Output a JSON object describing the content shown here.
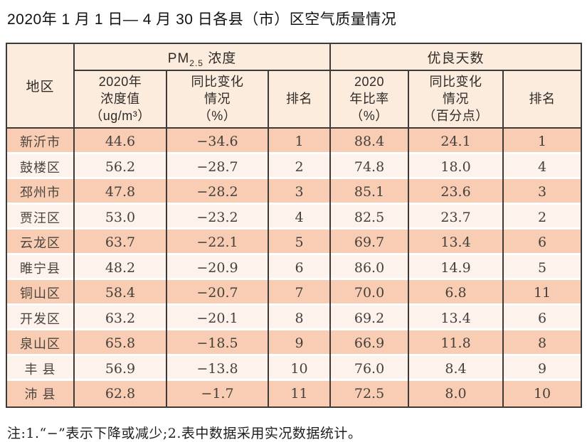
{
  "title": "2020年 1 月 1 日— 4 月 30 日各县（市）区空气质量情况",
  "note": "注:1.“−”表示下降或减少;2.表中数据采用实况数据统计。",
  "table": {
    "region_header": "地区",
    "pm_group": {
      "prefix": "PM",
      "sub": "2.5",
      "suffix": " 浓度"
    },
    "good_days_group": "优良天数",
    "sub_headers": [
      "2020年\n浓度值\n（ug/m³）",
      "同比变化\n情况\n（%）",
      "排名",
      "2020\n年比率\n（%）",
      "同比变化\n情况\n（百分点）",
      "排名"
    ]
  },
  "chart_data": {
    "type": "table",
    "title": "2020年1月1日—4月30日各县（市）区空气质量情况",
    "column_groups": [
      "PM2.5浓度",
      "优良天数"
    ],
    "columns": [
      "地区",
      "2020年浓度值（ug/m³）",
      "PM2.5同比变化情况（%）",
      "PM2.5排名",
      "优良天数2020年比率（%）",
      "优良天数同比变化情况（百分点）",
      "优良天数排名"
    ],
    "rows": [
      [
        "新沂市",
        "44.6",
        "−34.6",
        "1",
        "88.4",
        "24.1",
        "1"
      ],
      [
        "鼓楼区",
        "56.2",
        "−28.7",
        "2",
        "74.8",
        "18.0",
        "4"
      ],
      [
        "邳州市",
        "47.8",
        "−28.2",
        "3",
        "85.1",
        "23.6",
        "3"
      ],
      [
        "贾汪区",
        "53.0",
        "−23.2",
        "4",
        "82.5",
        "23.7",
        "2"
      ],
      [
        "云龙区",
        "63.7",
        "−22.1",
        "5",
        "69.7",
        "13.4",
        "6"
      ],
      [
        "睢宁县",
        "48.2",
        "−20.9",
        "6",
        "86.0",
        "14.9",
        "5"
      ],
      [
        "铜山区",
        "58.4",
        "−20.7",
        "7",
        "70.0",
        "6.8",
        "11"
      ],
      [
        "开发区",
        "63.2",
        "−20.1",
        "8",
        "69.2",
        "13.4",
        "6"
      ],
      [
        "泉山区",
        "65.8",
        "−18.5",
        "9",
        "66.9",
        "11.8",
        "8"
      ],
      [
        "丰 县",
        "56.9",
        "−13.8",
        "10",
        "76.0",
        "8.4",
        "9"
      ],
      [
        "沛 县",
        "62.8",
        "−1.7",
        "11",
        "72.5",
        "8.0",
        "10"
      ]
    ],
    "notes": "注:1.“−”表示下降或减少;2.表中数据采用实况数据统计。",
    "row_colors": {
      "odd": "#f8cdb3",
      "even": "#fdf2ec",
      "header": "#fcecdd",
      "border": "#3e3a37"
    }
  }
}
